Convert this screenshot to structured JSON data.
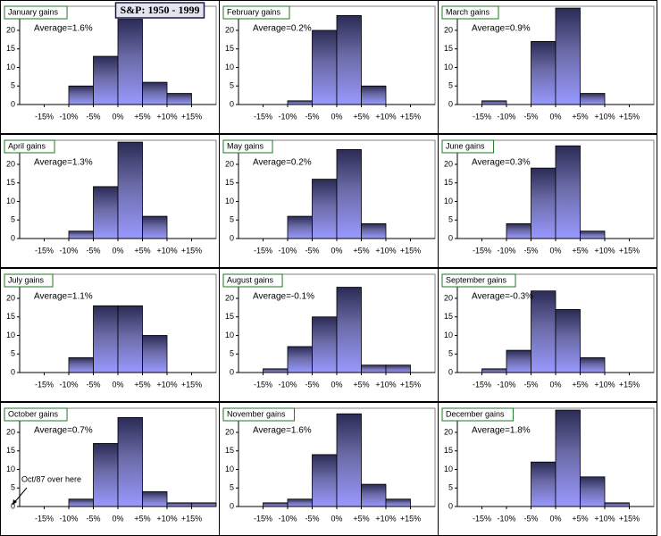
{
  "title": "S&P: 1950 - 1999",
  "chart_data": [
    {
      "type": "histogram",
      "title": "January gains",
      "annotation": "Average=1.6%",
      "bins": [
        -20,
        -15,
        -10,
        -5,
        0,
        5,
        10,
        15,
        20
      ],
      "values": [
        0,
        0,
        5,
        13,
        23,
        6,
        3,
        0
      ],
      "color": "#9999ff",
      "xlim": [
        -20,
        20
      ],
      "xticks": [
        {
          "value": -15,
          "label": "-15%"
        },
        {
          "value": -10,
          "label": "-10%"
        },
        {
          "value": -5,
          "label": "-5%"
        },
        {
          "value": 0,
          "label": "0%"
        },
        {
          "value": 5,
          "label": "+5%"
        },
        {
          "value": 10,
          "label": "+10%"
        },
        {
          "value": 15,
          "label": "+15%"
        }
      ],
      "ylim": [
        0,
        26.5
      ],
      "yticks": [
        0,
        5,
        10,
        15,
        20,
        25
      ],
      "grid": false
    },
    {
      "type": "histogram",
      "title": "February gains",
      "annotation": "Average=0.2%",
      "bins": [
        -20,
        -15,
        -10,
        -5,
        0,
        5,
        10,
        15,
        20
      ],
      "values": [
        0,
        0,
        1,
        20,
        24,
        5,
        0,
        0
      ],
      "color": "#9999ff",
      "xlim": [
        -20,
        20
      ],
      "xticks": [
        {
          "value": -15,
          "label": "-15%"
        },
        {
          "value": -10,
          "label": "-10%"
        },
        {
          "value": -5,
          "label": "-5%"
        },
        {
          "value": 0,
          "label": "0%"
        },
        {
          "value": 5,
          "label": "+5%"
        },
        {
          "value": 10,
          "label": "+10%"
        },
        {
          "value": 15,
          "label": "+15%"
        }
      ],
      "ylim": [
        0,
        26.5
      ],
      "yticks": [
        0,
        5,
        10,
        15,
        20,
        25
      ],
      "grid": false
    },
    {
      "type": "histogram",
      "title": "March gains",
      "annotation": "Average=0.9%",
      "bins": [
        -20,
        -15,
        -10,
        -5,
        0,
        5,
        10,
        15,
        20
      ],
      "values": [
        0,
        1,
        0,
        17,
        26,
        3,
        0,
        0
      ],
      "color": "#9999ff",
      "xlim": [
        -20,
        20
      ],
      "xticks": [
        {
          "value": -15,
          "label": "-15%"
        },
        {
          "value": -10,
          "label": "-10%"
        },
        {
          "value": -5,
          "label": "-5%"
        },
        {
          "value": 0,
          "label": "0%"
        },
        {
          "value": 5,
          "label": "+5%"
        },
        {
          "value": 10,
          "label": "+10%"
        },
        {
          "value": 15,
          "label": "+15%"
        }
      ],
      "ylim": [
        0,
        26.5
      ],
      "yticks": [
        0,
        5,
        10,
        15,
        20,
        25
      ],
      "grid": false
    },
    {
      "type": "histogram",
      "title": "April gains",
      "annotation": "Average=1.3%",
      "bins": [
        -20,
        -15,
        -10,
        -5,
        0,
        5,
        10,
        15,
        20
      ],
      "values": [
        0,
        0,
        2,
        14,
        26,
        6,
        0,
        0
      ],
      "color": "#9999ff",
      "xlim": [
        -20,
        20
      ],
      "xticks": [
        {
          "value": -15,
          "label": "-15%"
        },
        {
          "value": -10,
          "label": "-10%"
        },
        {
          "value": -5,
          "label": "-5%"
        },
        {
          "value": 0,
          "label": "0%"
        },
        {
          "value": 5,
          "label": "+5%"
        },
        {
          "value": 10,
          "label": "+10%"
        },
        {
          "value": 15,
          "label": "+15%"
        }
      ],
      "ylim": [
        0,
        26.5
      ],
      "yticks": [
        0,
        5,
        10,
        15,
        20,
        25
      ],
      "grid": false
    },
    {
      "type": "histogram",
      "title": "May gains",
      "annotation": "Average=0.2%",
      "bins": [
        -20,
        -15,
        -10,
        -5,
        0,
        5,
        10,
        15,
        20
      ],
      "values": [
        0,
        0,
        6,
        16,
        24,
        4,
        0,
        0
      ],
      "color": "#9999ff",
      "xlim": [
        -20,
        20
      ],
      "xticks": [
        {
          "value": -15,
          "label": "-15%"
        },
        {
          "value": -10,
          "label": "-10%"
        },
        {
          "value": -5,
          "label": "-5%"
        },
        {
          "value": 0,
          "label": "0%"
        },
        {
          "value": 5,
          "label": "+5%"
        },
        {
          "value": 10,
          "label": "+10%"
        },
        {
          "value": 15,
          "label": "+15%"
        }
      ],
      "ylim": [
        0,
        26.5
      ],
      "yticks": [
        0,
        5,
        10,
        15,
        20,
        25
      ],
      "grid": false
    },
    {
      "type": "histogram",
      "title": "June gains",
      "annotation": "Average=0.3%",
      "bins": [
        -20,
        -15,
        -10,
        -5,
        0,
        5,
        10,
        15,
        20
      ],
      "values": [
        0,
        0,
        4,
        19,
        25,
        2,
        0,
        0
      ],
      "color": "#9999ff",
      "xlim": [
        -20,
        20
      ],
      "xticks": [
        {
          "value": -15,
          "label": "-15%"
        },
        {
          "value": -10,
          "label": "-10%"
        },
        {
          "value": -5,
          "label": "-5%"
        },
        {
          "value": 0,
          "label": "0%"
        },
        {
          "value": 5,
          "label": "+5%"
        },
        {
          "value": 10,
          "label": "+10%"
        },
        {
          "value": 15,
          "label": "+15%"
        }
      ],
      "ylim": [
        0,
        26.5
      ],
      "yticks": [
        0,
        5,
        10,
        15,
        20,
        25
      ],
      "grid": false
    },
    {
      "type": "histogram",
      "title": "July gains",
      "annotation": "Average=1.1%",
      "bins": [
        -20,
        -15,
        -10,
        -5,
        0,
        5,
        10,
        15,
        20
      ],
      "values": [
        0,
        0,
        4,
        18,
        18,
        10,
        0,
        0
      ],
      "color": "#9999ff",
      "xlim": [
        -20,
        20
      ],
      "xticks": [
        {
          "value": -15,
          "label": "-15%"
        },
        {
          "value": -10,
          "label": "-10%"
        },
        {
          "value": -5,
          "label": "-5%"
        },
        {
          "value": 0,
          "label": "0%"
        },
        {
          "value": 5,
          "label": "+5%"
        },
        {
          "value": 10,
          "label": "+10%"
        },
        {
          "value": 15,
          "label": "+15%"
        }
      ],
      "ylim": [
        0,
        26.5
      ],
      "yticks": [
        0,
        5,
        10,
        15,
        20,
        25
      ],
      "grid": false
    },
    {
      "type": "histogram",
      "title": "August gains",
      "annotation": "Average=-0.1%",
      "bins": [
        -20,
        -15,
        -10,
        -5,
        0,
        5,
        10,
        15,
        20
      ],
      "values": [
        0,
        1,
        7,
        15,
        23,
        2,
        2,
        0
      ],
      "color": "#9999ff",
      "xlim": [
        -20,
        20
      ],
      "xticks": [
        {
          "value": -15,
          "label": "-15%"
        },
        {
          "value": -10,
          "label": "-10%"
        },
        {
          "value": -5,
          "label": "-5%"
        },
        {
          "value": 0,
          "label": "0%"
        },
        {
          "value": 5,
          "label": "+5%"
        },
        {
          "value": 10,
          "label": "+10%"
        },
        {
          "value": 15,
          "label": "+15%"
        }
      ],
      "ylim": [
        0,
        26.5
      ],
      "yticks": [
        0,
        5,
        10,
        15,
        20,
        25
      ],
      "grid": false
    },
    {
      "type": "histogram",
      "title": "September gains",
      "annotation": "Average=-0.3%",
      "bins": [
        -20,
        -15,
        -10,
        -5,
        0,
        5,
        10,
        15,
        20
      ],
      "values": [
        0,
        1,
        6,
        22,
        17,
        4,
        0,
        0
      ],
      "color": "#9999ff",
      "xlim": [
        -20,
        20
      ],
      "xticks": [
        {
          "value": -15,
          "label": "-15%"
        },
        {
          "value": -10,
          "label": "-10%"
        },
        {
          "value": -5,
          "label": "-5%"
        },
        {
          "value": 0,
          "label": "0%"
        },
        {
          "value": 5,
          "label": "+5%"
        },
        {
          "value": 10,
          "label": "+10%"
        },
        {
          "value": 15,
          "label": "+15%"
        }
      ],
      "ylim": [
        0,
        26.5
      ],
      "yticks": [
        0,
        5,
        10,
        15,
        20,
        25
      ],
      "grid": false
    },
    {
      "type": "histogram",
      "title": "October gains",
      "annotation": "Average=0.7%",
      "note": "Oct/87 over here",
      "bins": [
        -20,
        -15,
        -10,
        -5,
        0,
        5,
        10,
        15,
        20
      ],
      "values": [
        0,
        0,
        2,
        17,
        24,
        4,
        1,
        1
      ],
      "color": "#9999ff",
      "xlim": [
        -20,
        20
      ],
      "xticks": [
        {
          "value": -15,
          "label": "-15%"
        },
        {
          "value": -10,
          "label": "-10%"
        },
        {
          "value": -5,
          "label": "-5%"
        },
        {
          "value": 0,
          "label": "0%"
        },
        {
          "value": 5,
          "label": "+5%"
        },
        {
          "value": 10,
          "label": "+10%"
        },
        {
          "value": 15,
          "label": "+15%"
        }
      ],
      "ylim": [
        0,
        26.5
      ],
      "yticks": [
        0,
        5,
        10,
        15,
        20,
        25
      ],
      "grid": false
    },
    {
      "type": "histogram",
      "title": "November gains",
      "annotation": "Average=1.6%",
      "bins": [
        -20,
        -15,
        -10,
        -5,
        0,
        5,
        10,
        15,
        20
      ],
      "values": [
        0,
        1,
        2,
        14,
        25,
        6,
        2,
        0
      ],
      "color": "#9999ff",
      "xlim": [
        -20,
        20
      ],
      "xticks": [
        {
          "value": -15,
          "label": "-15%"
        },
        {
          "value": -10,
          "label": "-10%"
        },
        {
          "value": -5,
          "label": "-5%"
        },
        {
          "value": 0,
          "label": "0%"
        },
        {
          "value": 5,
          "label": "+5%"
        },
        {
          "value": 10,
          "label": "+10%"
        },
        {
          "value": 15,
          "label": "+15%"
        }
      ],
      "ylim": [
        0,
        26.5
      ],
      "yticks": [
        0,
        5,
        10,
        15,
        20,
        25
      ],
      "grid": false
    },
    {
      "type": "histogram",
      "title": "December gains",
      "annotation": "Average=1.8%",
      "bins": [
        -20,
        -15,
        -10,
        -5,
        0,
        5,
        10,
        15,
        20
      ],
      "values": [
        0,
        0,
        0,
        12,
        26,
        8,
        1,
        0
      ],
      "color": "#9999ff",
      "xlim": [
        -20,
        20
      ],
      "xticks": [
        {
          "value": -15,
          "label": "-15%"
        },
        {
          "value": -10,
          "label": "-10%"
        },
        {
          "value": -5,
          "label": "-5%"
        },
        {
          "value": 0,
          "label": "0%"
        },
        {
          "value": 5,
          "label": "+5%"
        },
        {
          "value": 10,
          "label": "+10%"
        },
        {
          "value": 15,
          "label": "+15%"
        }
      ],
      "ylim": [
        0,
        26.5
      ],
      "yticks": [
        0,
        5,
        10,
        15,
        20,
        25
      ],
      "grid": false
    }
  ]
}
